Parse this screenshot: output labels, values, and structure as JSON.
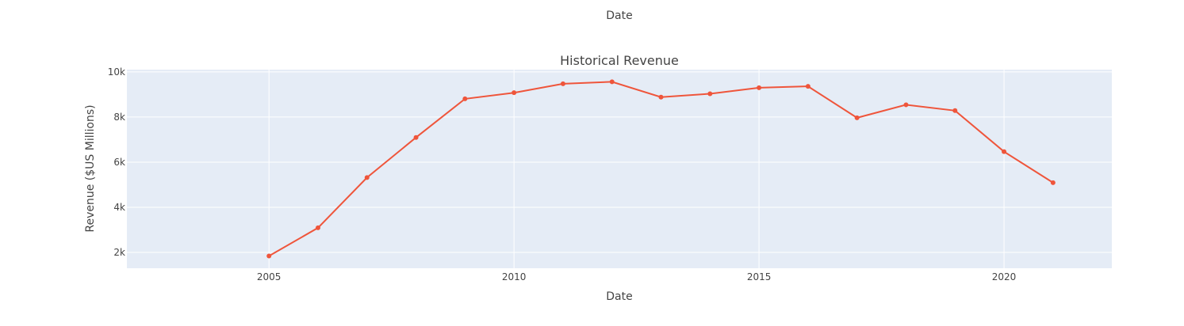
{
  "top_label": "Date",
  "chart_data": {
    "type": "line",
    "title": "Historical Revenue",
    "xlabel": "Date",
    "ylabel": "Revenue ($US Millions)",
    "xlim": [
      2002.1,
      2022.2
    ],
    "ylim": [
      1300,
      10100
    ],
    "x_ticks": [
      2005,
      2010,
      2015,
      2020
    ],
    "x_tick_labels": [
      "2005",
      "2010",
      "2015",
      "2020"
    ],
    "y_ticks": [
      2000,
      4000,
      6000,
      8000,
      10000
    ],
    "y_tick_labels": [
      "2k",
      "4k",
      "6k",
      "8k",
      "10k"
    ],
    "grid": true,
    "line_color": "#EF553B",
    "plot_bg": "#E5ECF6",
    "x": [
      2005,
      2006,
      2007,
      2008,
      2009,
      2010,
      2011,
      2012,
      2013,
      2014,
      2015,
      2016,
      2017,
      2018,
      2019,
      2020,
      2021
    ],
    "y": [
      1843,
      3092,
      5319,
      7094,
      8806,
      9078,
      9474,
      9559,
      8883,
      9030,
      9296,
      9361,
      7965,
      8542,
      8285,
      6466,
      5090
    ]
  }
}
